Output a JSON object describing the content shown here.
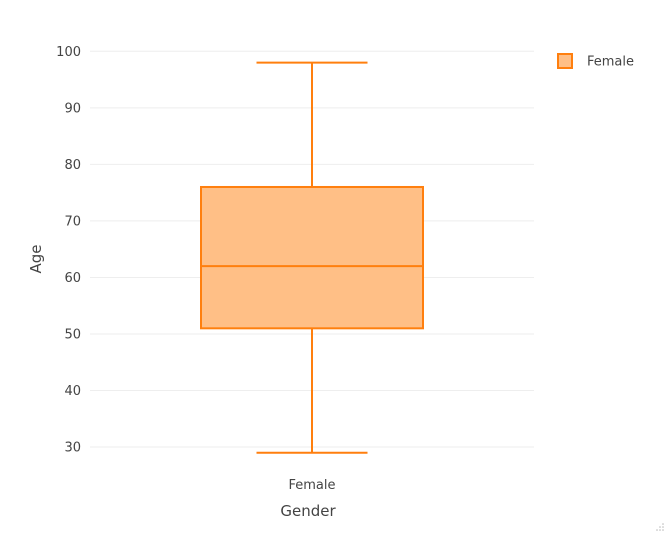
{
  "chart_data": {
    "type": "box",
    "xlabel": "Gender",
    "ylabel": "Age",
    "categories": [
      "Female"
    ],
    "series": [
      {
        "name": "Female",
        "category": "Female",
        "min": 29,
        "q1": 51,
        "median": 62,
        "q3": 76,
        "max": 98
      }
    ],
    "ylim": [
      27,
      102
    ],
    "yticks": [
      30,
      40,
      50,
      60,
      70,
      80,
      90,
      100
    ],
    "grid": true,
    "legend": {
      "placement": "top-right",
      "entries": [
        "Female"
      ]
    },
    "colors": {
      "stroke": "#ff7f0e",
      "fill": "#ffbf86"
    }
  }
}
